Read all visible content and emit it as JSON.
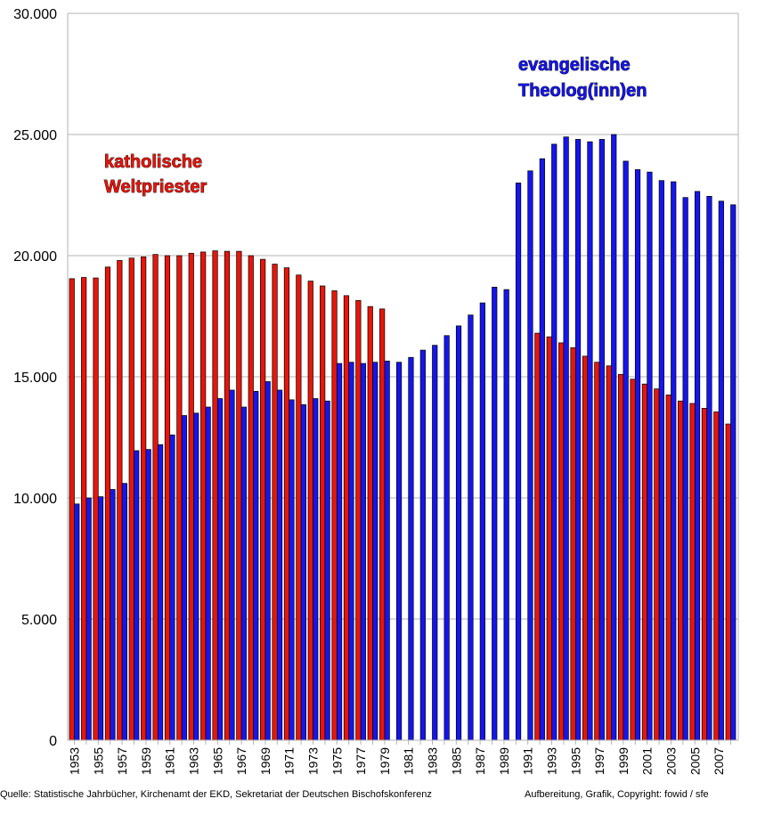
{
  "chart_data": {
    "type": "bar",
    "ylim": [
      0,
      30000
    ],
    "yticks": [
      "0",
      "5.000",
      "10.000",
      "15.000",
      "20.000",
      "25.000",
      "30.000"
    ],
    "grid": true,
    "categories": [
      "1953",
      "1954",
      "1955",
      "1956",
      "1957",
      "1958",
      "1959",
      "1960",
      "1961",
      "1962",
      "1963",
      "1964",
      "1965",
      "1966",
      "1967",
      "1968",
      "1969",
      "1970",
      "1971",
      "1972",
      "1973",
      "1974",
      "1975",
      "1976",
      "1977",
      "1978",
      "1979",
      "1980",
      "1981",
      "1982",
      "1983",
      "1984",
      "1985",
      "1986",
      "1987",
      "1988",
      "1989",
      "1990",
      "1991",
      "1992",
      "1993",
      "1994",
      "1995",
      "1996",
      "1997",
      "1998",
      "1999",
      "2000",
      "2001",
      "2002",
      "2003",
      "2004",
      "2005",
      "2006",
      "2007",
      "2008"
    ],
    "series": [
      {
        "color": "#e8150a",
        "values": [
          19050,
          19100,
          19080,
          19530,
          19800,
          19900,
          19950,
          20050,
          20000,
          20000,
          20100,
          20150,
          20200,
          20180,
          20180,
          20000,
          19850,
          19650,
          19500,
          19200,
          18950,
          18750,
          18550,
          18350,
          18150,
          17900,
          17800,
          null,
          null,
          null,
          null,
          null,
          null,
          null,
          null,
          null,
          null,
          null,
          null,
          16800,
          16650,
          16400,
          16200,
          15850,
          15600,
          15450,
          15100,
          14900,
          14700,
          14500,
          14250,
          14000,
          13900,
          13700,
          13550,
          13050
        ]
      },
      {
        "color": "#1515ee",
        "values": [
          9750,
          10000,
          10050,
          10350,
          10600,
          11950,
          12000,
          12200,
          12600,
          13400,
          13500,
          13750,
          14100,
          14450,
          13750,
          14400,
          14800,
          14450,
          14050,
          13850,
          14100,
          14000,
          15550,
          15600,
          15550,
          15600,
          15650,
          15600,
          15800,
          16100,
          16300,
          16700,
          17100,
          17550,
          18050,
          18700,
          18600,
          23000,
          23500,
          24000,
          24600,
          24900,
          24800,
          24700,
          24800,
          25000,
          23900,
          23550,
          23450,
          23100,
          23050,
          22400,
          22650,
          22450,
          22250,
          22100
        ]
      }
    ],
    "xtick_labels": [
      "1953",
      "1955",
      "1957",
      "1959",
      "1961",
      "1963",
      "1965",
      "1967",
      "1969",
      "1971",
      "1973",
      "1975",
      "1977",
      "1979",
      "1981",
      "1983",
      "1985",
      "1987",
      "1989",
      "1991",
      "1993",
      "1995",
      "1997",
      "1999",
      "2001",
      "2003",
      "2005",
      "2007"
    ],
    "annotations": {
      "katholisch_line1": "katholische",
      "katholisch_line2": "Weltpriester",
      "evangelisch_line1": "evangelische",
      "evangelisch_line2": "Theolog(inn)en"
    }
  },
  "footer": {
    "source": "Quelle: Statistische Jahrbücher, Kirchenamt der EKD, Sekretariat der Deutschen Bischofskonferenz",
    "credit": "Aufbereitung, Grafik, Copyright: fowid / sfe"
  }
}
